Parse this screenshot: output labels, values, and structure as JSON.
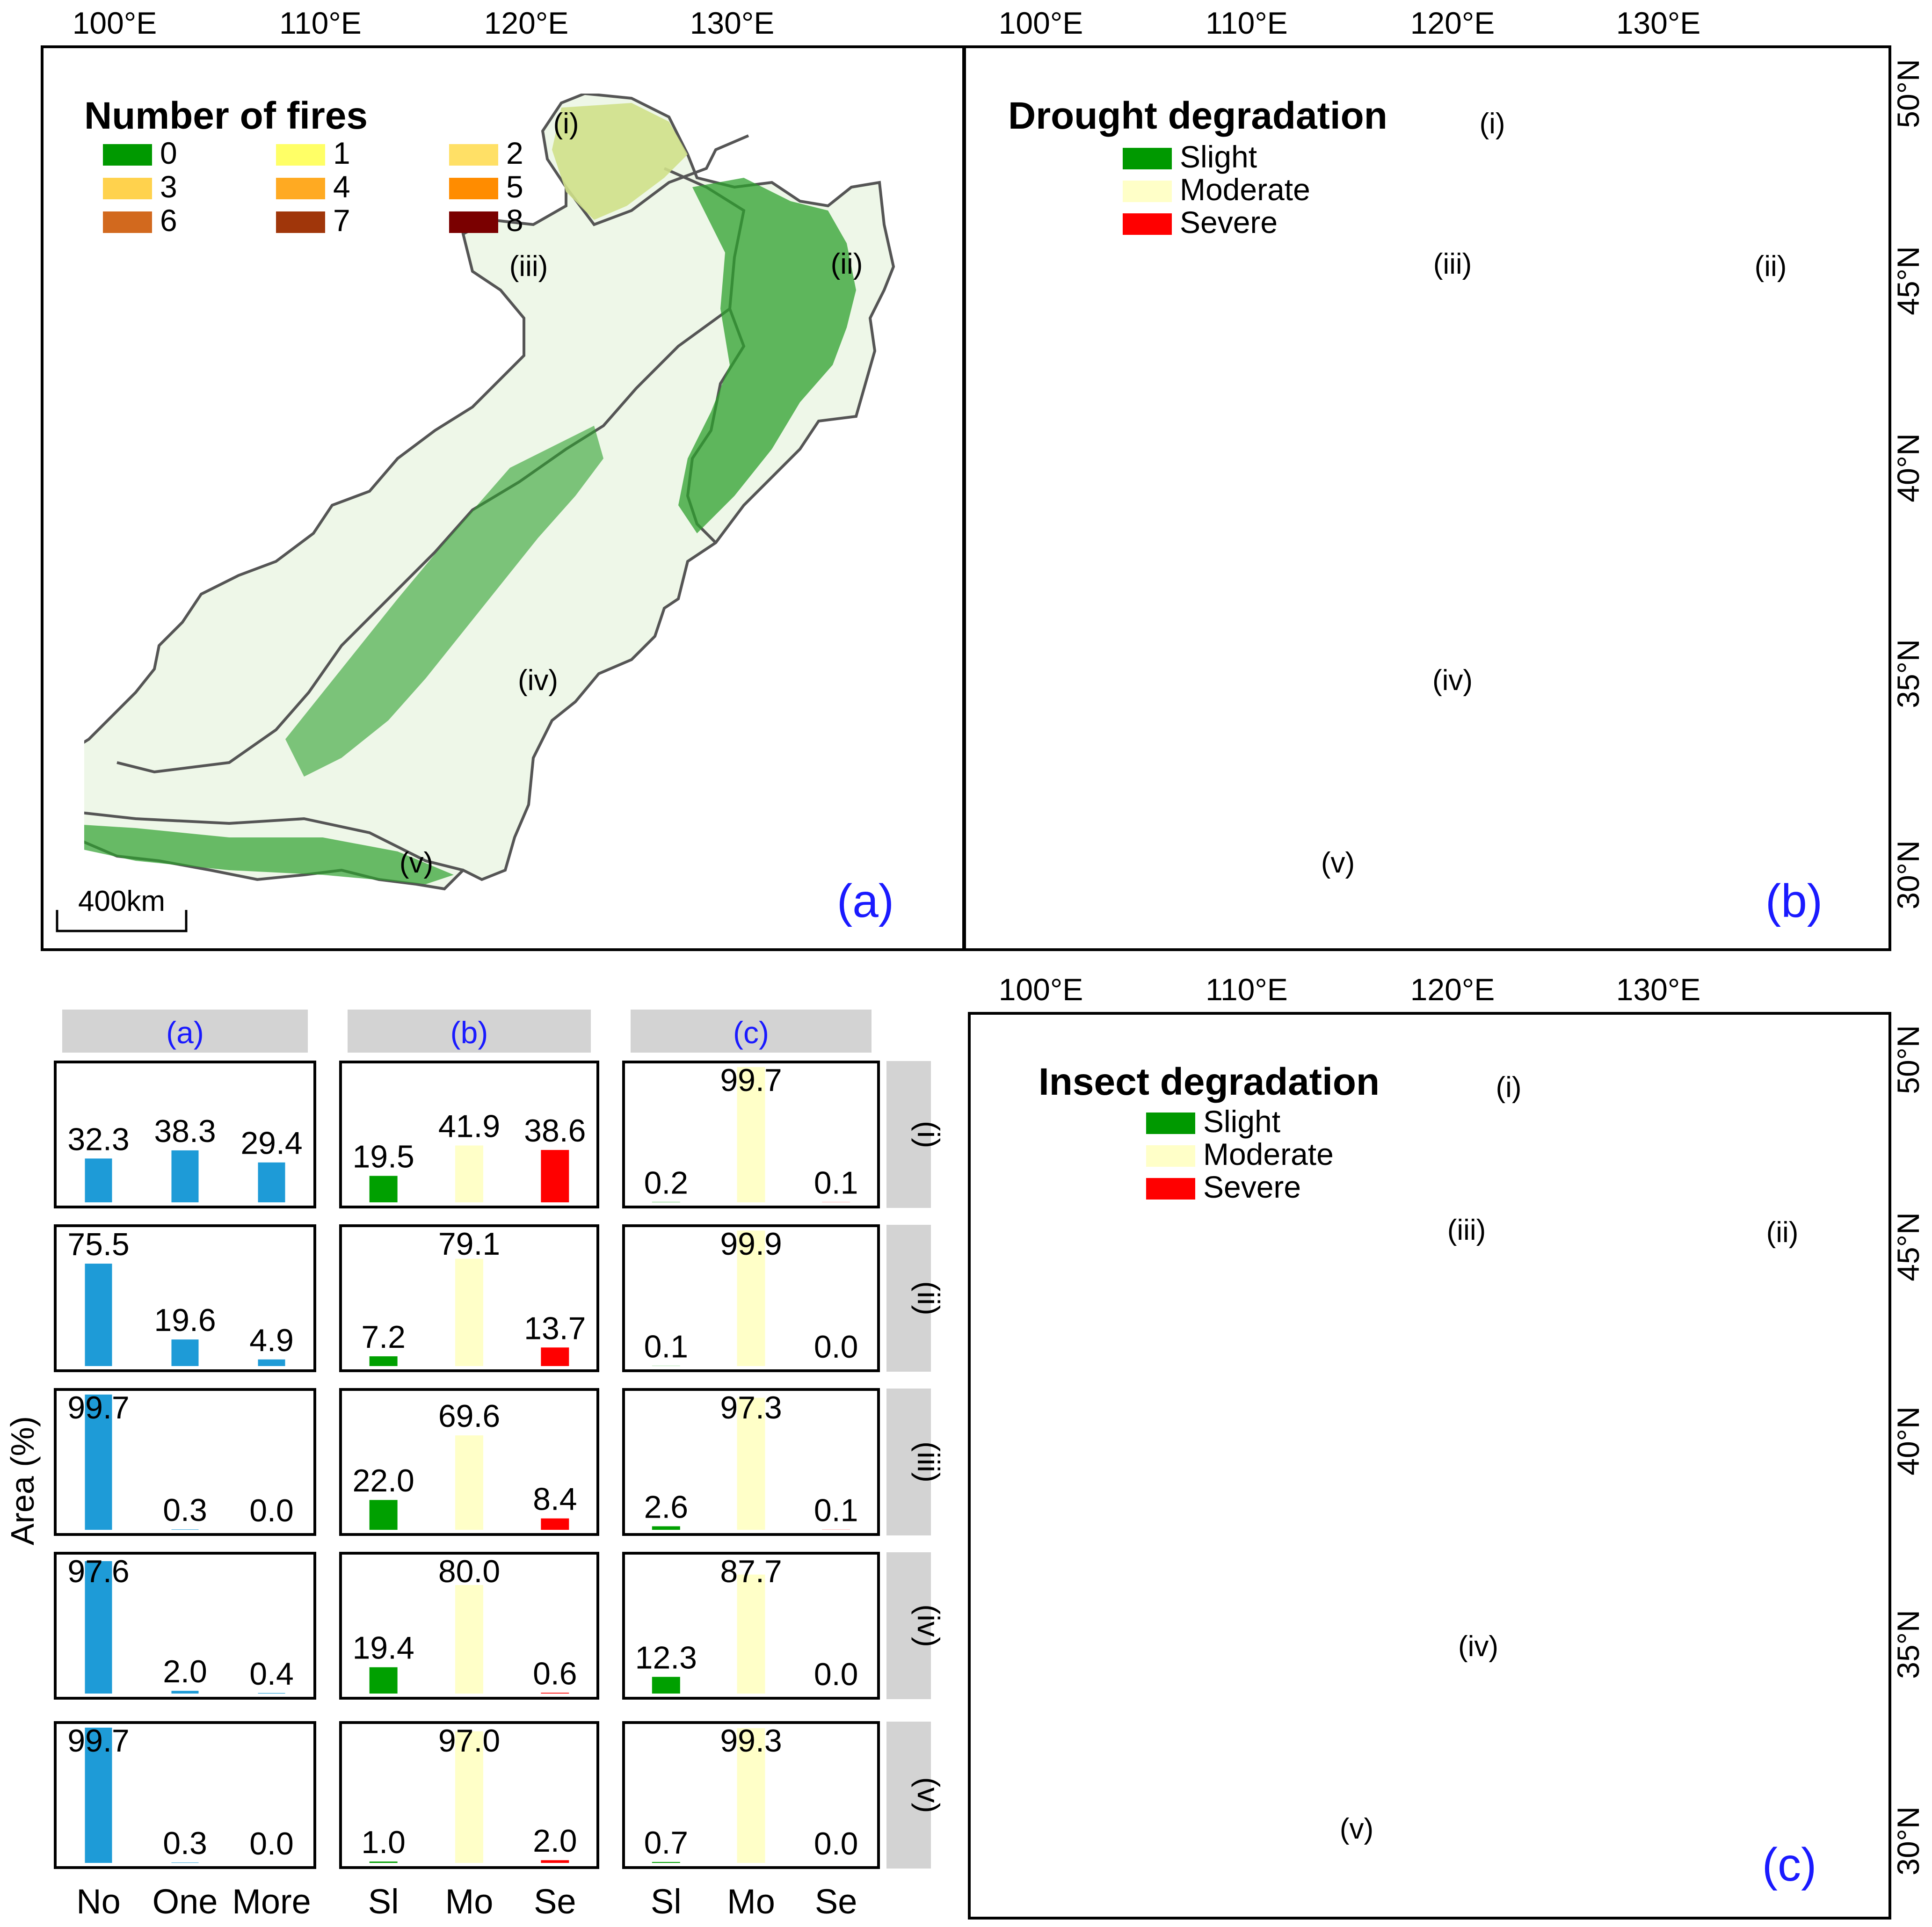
{
  "maps": [
    {
      "id": "a",
      "panel_label": "(a)",
      "legend_title": "Number of fires",
      "legend_entries": [
        {
          "label": "0",
          "color": "#009900"
        },
        {
          "label": "1",
          "color": "#ffff66"
        },
        {
          "label": "2",
          "color": "#ffe066"
        },
        {
          "label": "3",
          "color": "#ffd24d"
        },
        {
          "label": "4",
          "color": "#ffaa22"
        },
        {
          "label": "5",
          "color": "#ff8c00"
        },
        {
          "label": "6",
          "color": "#d2691e"
        },
        {
          "label": "7",
          "color": "#a0360a"
        },
        {
          "label": "8",
          "color": "#7a0000"
        }
      ],
      "top_ticks": [
        "100°E",
        "110°E",
        "120°E",
        "130°E"
      ],
      "right_ticks": [],
      "scale_bar": "400km"
    },
    {
      "id": "b",
      "panel_label": "(b)",
      "legend_title": "Drought degradation",
      "legend_entries": [
        {
          "label": "Slight",
          "color": "#009900"
        },
        {
          "label": "Moderate",
          "color": "#ffffc8"
        },
        {
          "label": "Severe",
          "color": "#ff0000"
        }
      ],
      "top_ticks": [
        "100°E",
        "110°E",
        "120°E",
        "130°E"
      ],
      "right_ticks": [
        "50°N",
        "45°N",
        "40°N",
        "35°N",
        "30°N"
      ]
    },
    {
      "id": "c",
      "panel_label": "(c)",
      "legend_title": "Insect degradation",
      "legend_entries": [
        {
          "label": "Slight",
          "color": "#009900"
        },
        {
          "label": "Moderate",
          "color": "#ffffc8"
        },
        {
          "label": "Severe",
          "color": "#ff0000"
        }
      ],
      "top_ticks": [
        "100°E",
        "110°E",
        "120°E",
        "130°E"
      ],
      "right_ticks": [
        "50°N",
        "45°N",
        "40°N",
        "35°N",
        "30°N"
      ]
    }
  ],
  "region_labels": [
    "(i)",
    "(ii)",
    "(iii)",
    "(iv)",
    "(v)"
  ],
  "chart_data": {
    "type": "bar",
    "ylabel": "Area (%)",
    "rows": [
      "(i)",
      "(ii)",
      "(iii)",
      "(iv)",
      "(v)"
    ],
    "columns": [
      {
        "header": "(a)",
        "categories": [
          "No",
          "One",
          "More"
        ],
        "colors": [
          "#1e9bd7",
          "#1e9bd7",
          "#1e9bd7"
        ],
        "values": [
          [
            32.3,
            38.3,
            29.4
          ],
          [
            75.5,
            19.6,
            4.9
          ],
          [
            99.7,
            0.3,
            0.0
          ],
          [
            97.6,
            2.0,
            0.4
          ],
          [
            99.7,
            0.3,
            0.0
          ]
        ]
      },
      {
        "header": "(b)",
        "categories": [
          "Sl",
          "Mo",
          "Se"
        ],
        "colors": [
          "#00a000",
          "#ffffc8",
          "#ff0000"
        ],
        "values": [
          [
            19.5,
            41.9,
            38.6
          ],
          [
            7.2,
            79.1,
            13.7
          ],
          [
            22.0,
            69.6,
            8.4
          ],
          [
            19.4,
            80.0,
            0.6
          ],
          [
            1.0,
            97.0,
            2.0
          ]
        ]
      },
      {
        "header": "(c)",
        "categories": [
          "Sl",
          "Mo",
          "Se"
        ],
        "colors": [
          "#00a000",
          "#ffffc8",
          "#ff0000"
        ],
        "values": [
          [
            0.2,
            99.7,
            0.1
          ],
          [
            0.1,
            99.9,
            0.0
          ],
          [
            2.6,
            97.3,
            0.1
          ],
          [
            12.3,
            87.7,
            0.0
          ],
          [
            0.7,
            99.3,
            0.0
          ]
        ]
      }
    ],
    "ylim": [
      0,
      100
    ]
  }
}
